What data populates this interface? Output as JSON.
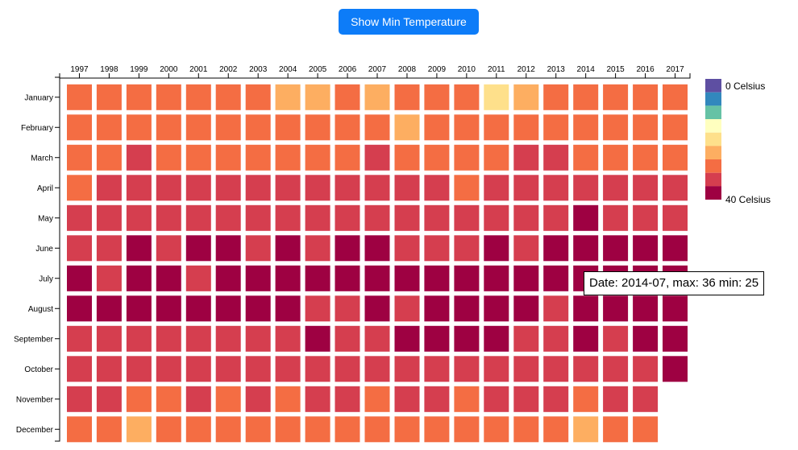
{
  "controls": {
    "toggle_label": "Show Min Temperature"
  },
  "tooltip": {
    "text": "Date: 2014-07, max: 36 min: 25"
  },
  "colors": {
    "scale": [
      "#5e4fa2",
      "#3288bd",
      "#66c2a5",
      "#ffffbf",
      "#fee08b",
      "#fdae61",
      "#f46d43",
      "#d53e4f",
      "#9e0142"
    ]
  },
  "legend": {
    "min_label": "0 Celsius",
    "max_label": "40 Celsius"
  },
  "chart_data": {
    "type": "heatmap",
    "title": "",
    "xlabel": "",
    "ylabel": "",
    "x": [
      "1997",
      "1998",
      "1999",
      "2000",
      "2001",
      "2002",
      "2003",
      "2004",
      "2005",
      "2006",
      "2007",
      "2008",
      "2009",
      "2010",
      "2011",
      "2012",
      "2013",
      "2014",
      "2015",
      "2016",
      "2017"
    ],
    "y": [
      "January",
      "February",
      "March",
      "April",
      "May",
      "June",
      "July",
      "August",
      "September",
      "October",
      "November",
      "December"
    ],
    "value_range": [
      0,
      40
    ],
    "unit": "Celsius",
    "color_bins": [
      "0-4.4",
      "4.4-8.9",
      "8.9-13.3",
      "13.3-17.8",
      "17.8-22.2",
      "22.2-26.7",
      "26.7-31.1",
      "31.1-35.6",
      "35.6-40"
    ],
    "bin_index_by_month": [
      [
        6,
        6,
        6,
        6,
        6,
        6,
        6,
        5,
        5,
        6,
        5,
        6,
        6,
        6,
        4,
        5,
        6,
        6,
        6,
        6,
        6
      ],
      [
        6,
        6,
        6,
        6,
        6,
        6,
        6,
        6,
        6,
        6,
        6,
        5,
        6,
        6,
        6,
        6,
        6,
        6,
        6,
        6,
        6
      ],
      [
        6,
        6,
        7,
        6,
        6,
        6,
        6,
        6,
        6,
        6,
        7,
        6,
        6,
        6,
        6,
        7,
        7,
        6,
        6,
        6,
        6
      ],
      [
        6,
        7,
        7,
        7,
        7,
        7,
        7,
        7,
        7,
        7,
        7,
        7,
        7,
        6,
        7,
        7,
        7,
        7,
        7,
        7,
        7
      ],
      [
        7,
        7,
        7,
        7,
        7,
        7,
        7,
        7,
        7,
        7,
        7,
        7,
        7,
        7,
        7,
        7,
        7,
        8,
        7,
        7,
        7
      ],
      [
        7,
        7,
        8,
        7,
        8,
        8,
        7,
        8,
        7,
        8,
        8,
        7,
        7,
        7,
        8,
        7,
        8,
        8,
        8,
        8,
        8
      ],
      [
        8,
        7,
        8,
        8,
        7,
        8,
        8,
        8,
        8,
        8,
        8,
        8,
        8,
        8,
        8,
        8,
        8,
        8,
        8,
        8,
        8
      ],
      [
        8,
        8,
        8,
        8,
        8,
        8,
        8,
        8,
        7,
        7,
        8,
        7,
        8,
        8,
        8,
        8,
        7,
        8,
        8,
        8,
        8
      ],
      [
        7,
        7,
        7,
        7,
        7,
        7,
        7,
        7,
        8,
        7,
        7,
        8,
        8,
        8,
        8,
        7,
        7,
        8,
        7,
        8,
        8
      ],
      [
        7,
        7,
        7,
        7,
        7,
        7,
        7,
        7,
        7,
        7,
        7,
        7,
        7,
        7,
        7,
        7,
        7,
        7,
        7,
        7,
        8
      ],
      [
        7,
        7,
        6,
        6,
        7,
        6,
        7,
        6,
        7,
        7,
        6,
        7,
        7,
        6,
        7,
        7,
        7,
        6,
        7,
        7,
        null
      ],
      [
        6,
        6,
        5,
        6,
        6,
        6,
        6,
        6,
        6,
        6,
        6,
        6,
        6,
        6,
        6,
        6,
        6,
        5,
        6,
        6,
        null
      ]
    ],
    "grid": false,
    "legend_position": "right"
  }
}
